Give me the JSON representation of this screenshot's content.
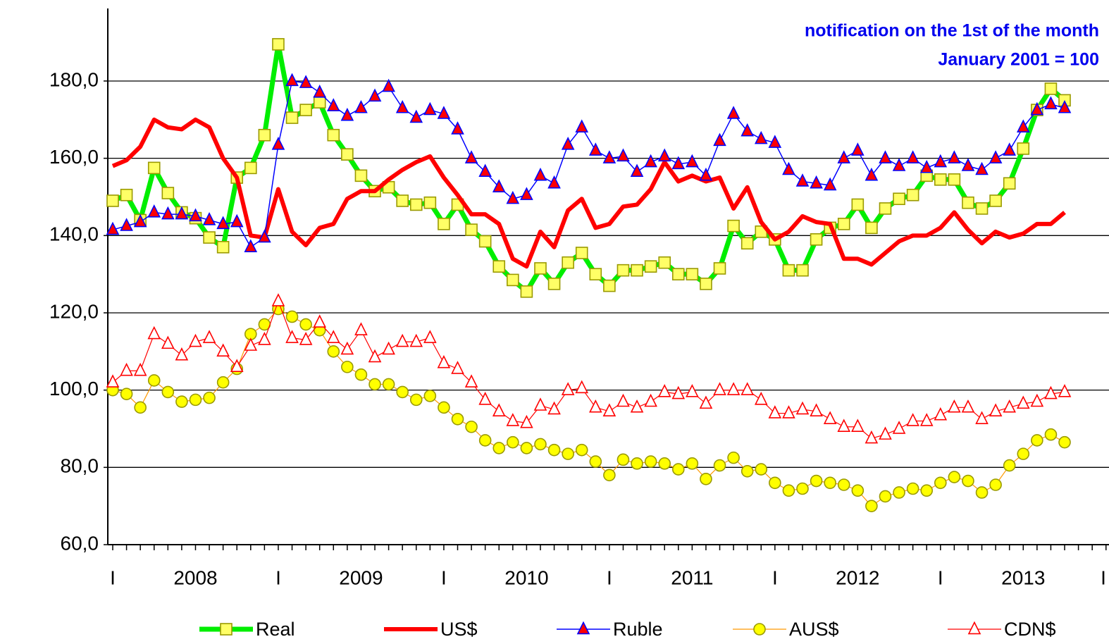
{
  "chart_data": {
    "type": "line",
    "annotations": [
      "notification on the 1st of the month",
      "January 2001 = 100"
    ],
    "categories": [
      "I",
      null,
      null,
      null,
      null,
      null,
      "2008",
      null,
      null,
      null,
      null,
      null,
      "I",
      null,
      null,
      null,
      null,
      null,
      "2009",
      null,
      null,
      null,
      null,
      null,
      "I",
      null,
      null,
      null,
      null,
      null,
      "2010",
      null,
      null,
      null,
      null,
      null,
      "I",
      null,
      null,
      null,
      null,
      null,
      "2011",
      null,
      null,
      null,
      null,
      null,
      "I",
      null,
      null,
      null,
      null,
      null,
      "2012",
      null,
      null,
      null,
      null,
      null,
      "I",
      null,
      null,
      null,
      null,
      null,
      "2013",
      null,
      null,
      null,
      null,
      null,
      "I"
    ],
    "ylim": [
      60,
      200
    ],
    "yticks": [
      {
        "value": 60,
        "label": "60,0"
      },
      {
        "value": 80,
        "label": "80,0"
      },
      {
        "value": 100,
        "label": "100,0"
      },
      {
        "value": 120,
        "label": "120,0"
      },
      {
        "value": 140,
        "label": "140,0"
      },
      {
        "value": 160,
        "label": "160,0"
      },
      {
        "value": 180,
        "label": "180,0"
      }
    ],
    "grid": true,
    "legend": "bottom",
    "series": [
      {
        "name": "Real",
        "color": "#00ee00",
        "line_width": 7,
        "marker": "square",
        "marker_color": "#ffff66",
        "marker_edge": "#9a9a00",
        "values": [
          149,
          150.5,
          144,
          157.5,
          151,
          146,
          144.5,
          139.5,
          137,
          155,
          157.5,
          166,
          189.5,
          170.5,
          172.5,
          174.5,
          166,
          161,
          155.5,
          151.5,
          152.5,
          149,
          148,
          148.5,
          143,
          148,
          141.5,
          138.5,
          132,
          128.5,
          125.5,
          131.5,
          127.5,
          133,
          135.5,
          130,
          127,
          131,
          131,
          132,
          133,
          130,
          130,
          127.5,
          131.5,
          142.5,
          138,
          141,
          139,
          131,
          131,
          139,
          142,
          143,
          148,
          142,
          147,
          149.5,
          150.5,
          155.5,
          154.5,
          154.5,
          148.5,
          147,
          149,
          153.5,
          162.5,
          172.5,
          178,
          175,
          null,
          null,
          null
        ]
      },
      {
        "name": "US$",
        "color": "#ff0000",
        "line_width": 6,
        "marker": "none",
        "values": [
          158,
          159.5,
          163,
          170,
          168,
          167.5,
          170,
          168,
          160,
          155,
          140,
          139.5,
          152,
          141,
          137.5,
          142,
          143,
          149.5,
          151.5,
          151.5,
          154.5,
          157,
          159,
          160.5,
          155,
          150.5,
          145.5,
          145.5,
          143,
          134,
          132,
          141,
          137,
          146.5,
          149.5,
          142,
          143,
          147.5,
          148,
          152,
          159,
          154,
          155.5,
          154,
          155,
          147,
          152.5,
          143.5,
          139,
          141,
          145,
          143.5,
          143,
          134,
          134,
          132.5,
          135.5,
          138.5,
          140,
          140,
          142,
          146,
          141.5,
          138,
          141,
          139.5,
          140.5,
          143,
          143,
          146,
          null,
          null,
          null
        ]
      },
      {
        "name": "Ruble",
        "color": "#0000ff",
        "line_width": 1.5,
        "marker": "triangle",
        "marker_color": "#ff0000",
        "marker_edge": "#0000ff",
        "values": [
          141.5,
          142.5,
          143.5,
          146,
          145.5,
          145.5,
          145,
          144,
          143,
          143.5,
          137,
          139.5,
          163.5,
          180,
          179.5,
          177,
          173.5,
          171,
          173,
          176,
          178.5,
          173,
          170.5,
          172.5,
          171.5,
          167.5,
          160,
          156.5,
          152.5,
          149.5,
          150.5,
          155.5,
          153.5,
          163.5,
          168,
          162,
          160,
          160.5,
          156.5,
          159,
          160.5,
          158.5,
          159,
          155.5,
          164.5,
          171.5,
          167,
          165,
          164,
          157,
          154,
          153.5,
          153,
          160,
          162,
          155.5,
          160,
          158,
          160,
          157.5,
          159,
          160,
          158,
          157,
          160,
          162,
          168,
          172.5,
          174,
          173,
          null,
          null,
          null
        ]
      },
      {
        "name": "AUS$",
        "color": "#ff9900",
        "line_width": 1.2,
        "marker": "circle",
        "marker_color": "#ffff00",
        "marker_edge": "#9a9a00",
        "values": [
          100,
          99,
          95.5,
          102.5,
          99.5,
          97,
          97.5,
          98,
          102,
          105.5,
          114.5,
          117,
          121,
          119,
          117,
          115.5,
          110,
          106,
          104,
          101.5,
          101.5,
          99.5,
          97.5,
          98.5,
          95.5,
          92.5,
          90.5,
          87,
          85,
          86.5,
          85,
          86,
          84.5,
          83.5,
          84.5,
          81.5,
          78,
          82,
          81,
          81.5,
          81,
          79.5,
          81,
          77,
          80.5,
          82.5,
          79,
          79.5,
          76,
          74,
          74.5,
          76.5,
          76,
          75.5,
          74,
          70,
          72.5,
          73.5,
          74.5,
          74,
          76,
          77.5,
          76.5,
          73.5,
          75.5,
          80.5,
          83.5,
          87,
          88.5,
          86.5,
          null,
          null,
          null
        ]
      },
      {
        "name": "CDN$",
        "color": "#ff0000",
        "line_width": 1.2,
        "marker": "triangle",
        "marker_color": "#ffffff",
        "marker_edge": "#ff0000",
        "values": [
          102,
          105,
          105,
          114.5,
          112,
          109,
          112.5,
          113.5,
          110,
          106,
          111.5,
          113,
          123,
          113.5,
          113,
          117.5,
          113.5,
          110.5,
          115.5,
          108.5,
          110.5,
          112.5,
          112.5,
          113.5,
          107,
          105.5,
          102,
          97.5,
          94.5,
          92,
          91.5,
          96,
          95,
          100,
          100.5,
          95.5,
          94.5,
          97,
          95.5,
          97,
          99.5,
          99,
          99.5,
          96.5,
          100,
          100,
          100,
          97.5,
          94,
          94,
          95,
          94.5,
          92.5,
          90.5,
          90.5,
          87.5,
          88.5,
          90,
          92,
          92,
          93.5,
          95.5,
          95.5,
          92.5,
          94.5,
          95.5,
          96.5,
          97,
          99,
          99.5,
          null,
          null,
          null
        ]
      }
    ]
  }
}
